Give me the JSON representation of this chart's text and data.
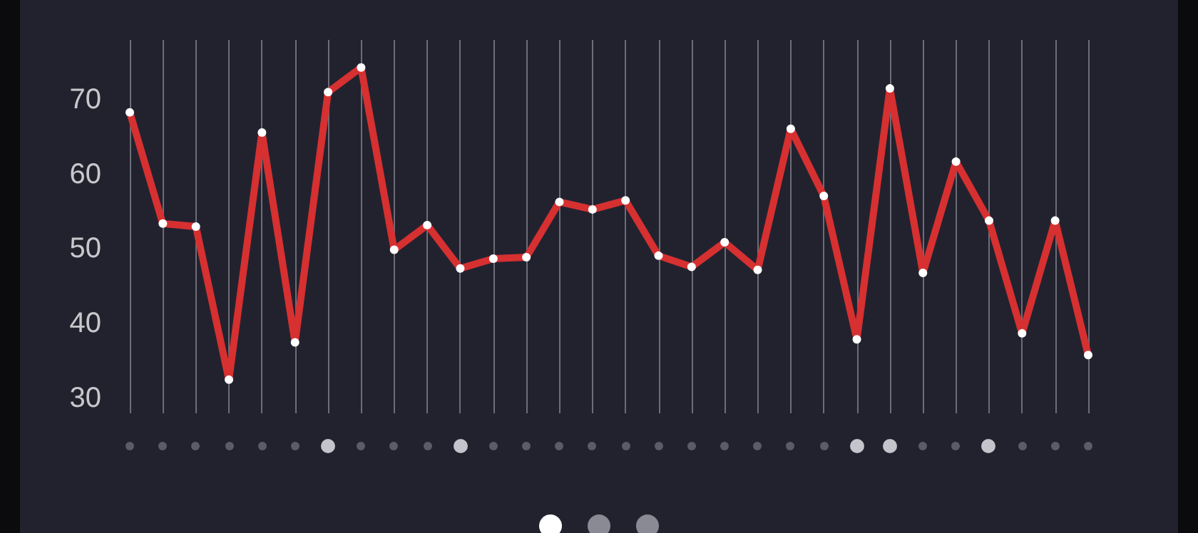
{
  "chart_data": {
    "type": "line",
    "categories": [
      null,
      null,
      null,
      null,
      null,
      null,
      null,
      null,
      null,
      null,
      null,
      null,
      null,
      null,
      null,
      null,
      null,
      null,
      null,
      null,
      null,
      null,
      null,
      null,
      null,
      null,
      null,
      null,
      null,
      null
    ],
    "series": [
      {
        "color": "#d63031",
        "values": [
          68.3,
          53.4,
          53.0,
          32.5,
          65.6,
          37.5,
          71.0,
          74.3,
          49.9,
          53.2,
          47.4,
          48.7,
          48.9,
          56.3,
          55.3,
          56.5,
          49.1,
          47.6,
          50.9,
          47.2,
          66.1,
          57.1,
          37.9,
          71.5,
          46.8,
          61.7,
          53.8,
          38.7,
          53.8,
          35.8
        ]
      }
    ],
    "ylim": [
      28,
      78
    ],
    "yticks": [
      30,
      40,
      50,
      60,
      70
    ],
    "grid": "x",
    "marker": "circle",
    "line_style": "solid"
  }
}
